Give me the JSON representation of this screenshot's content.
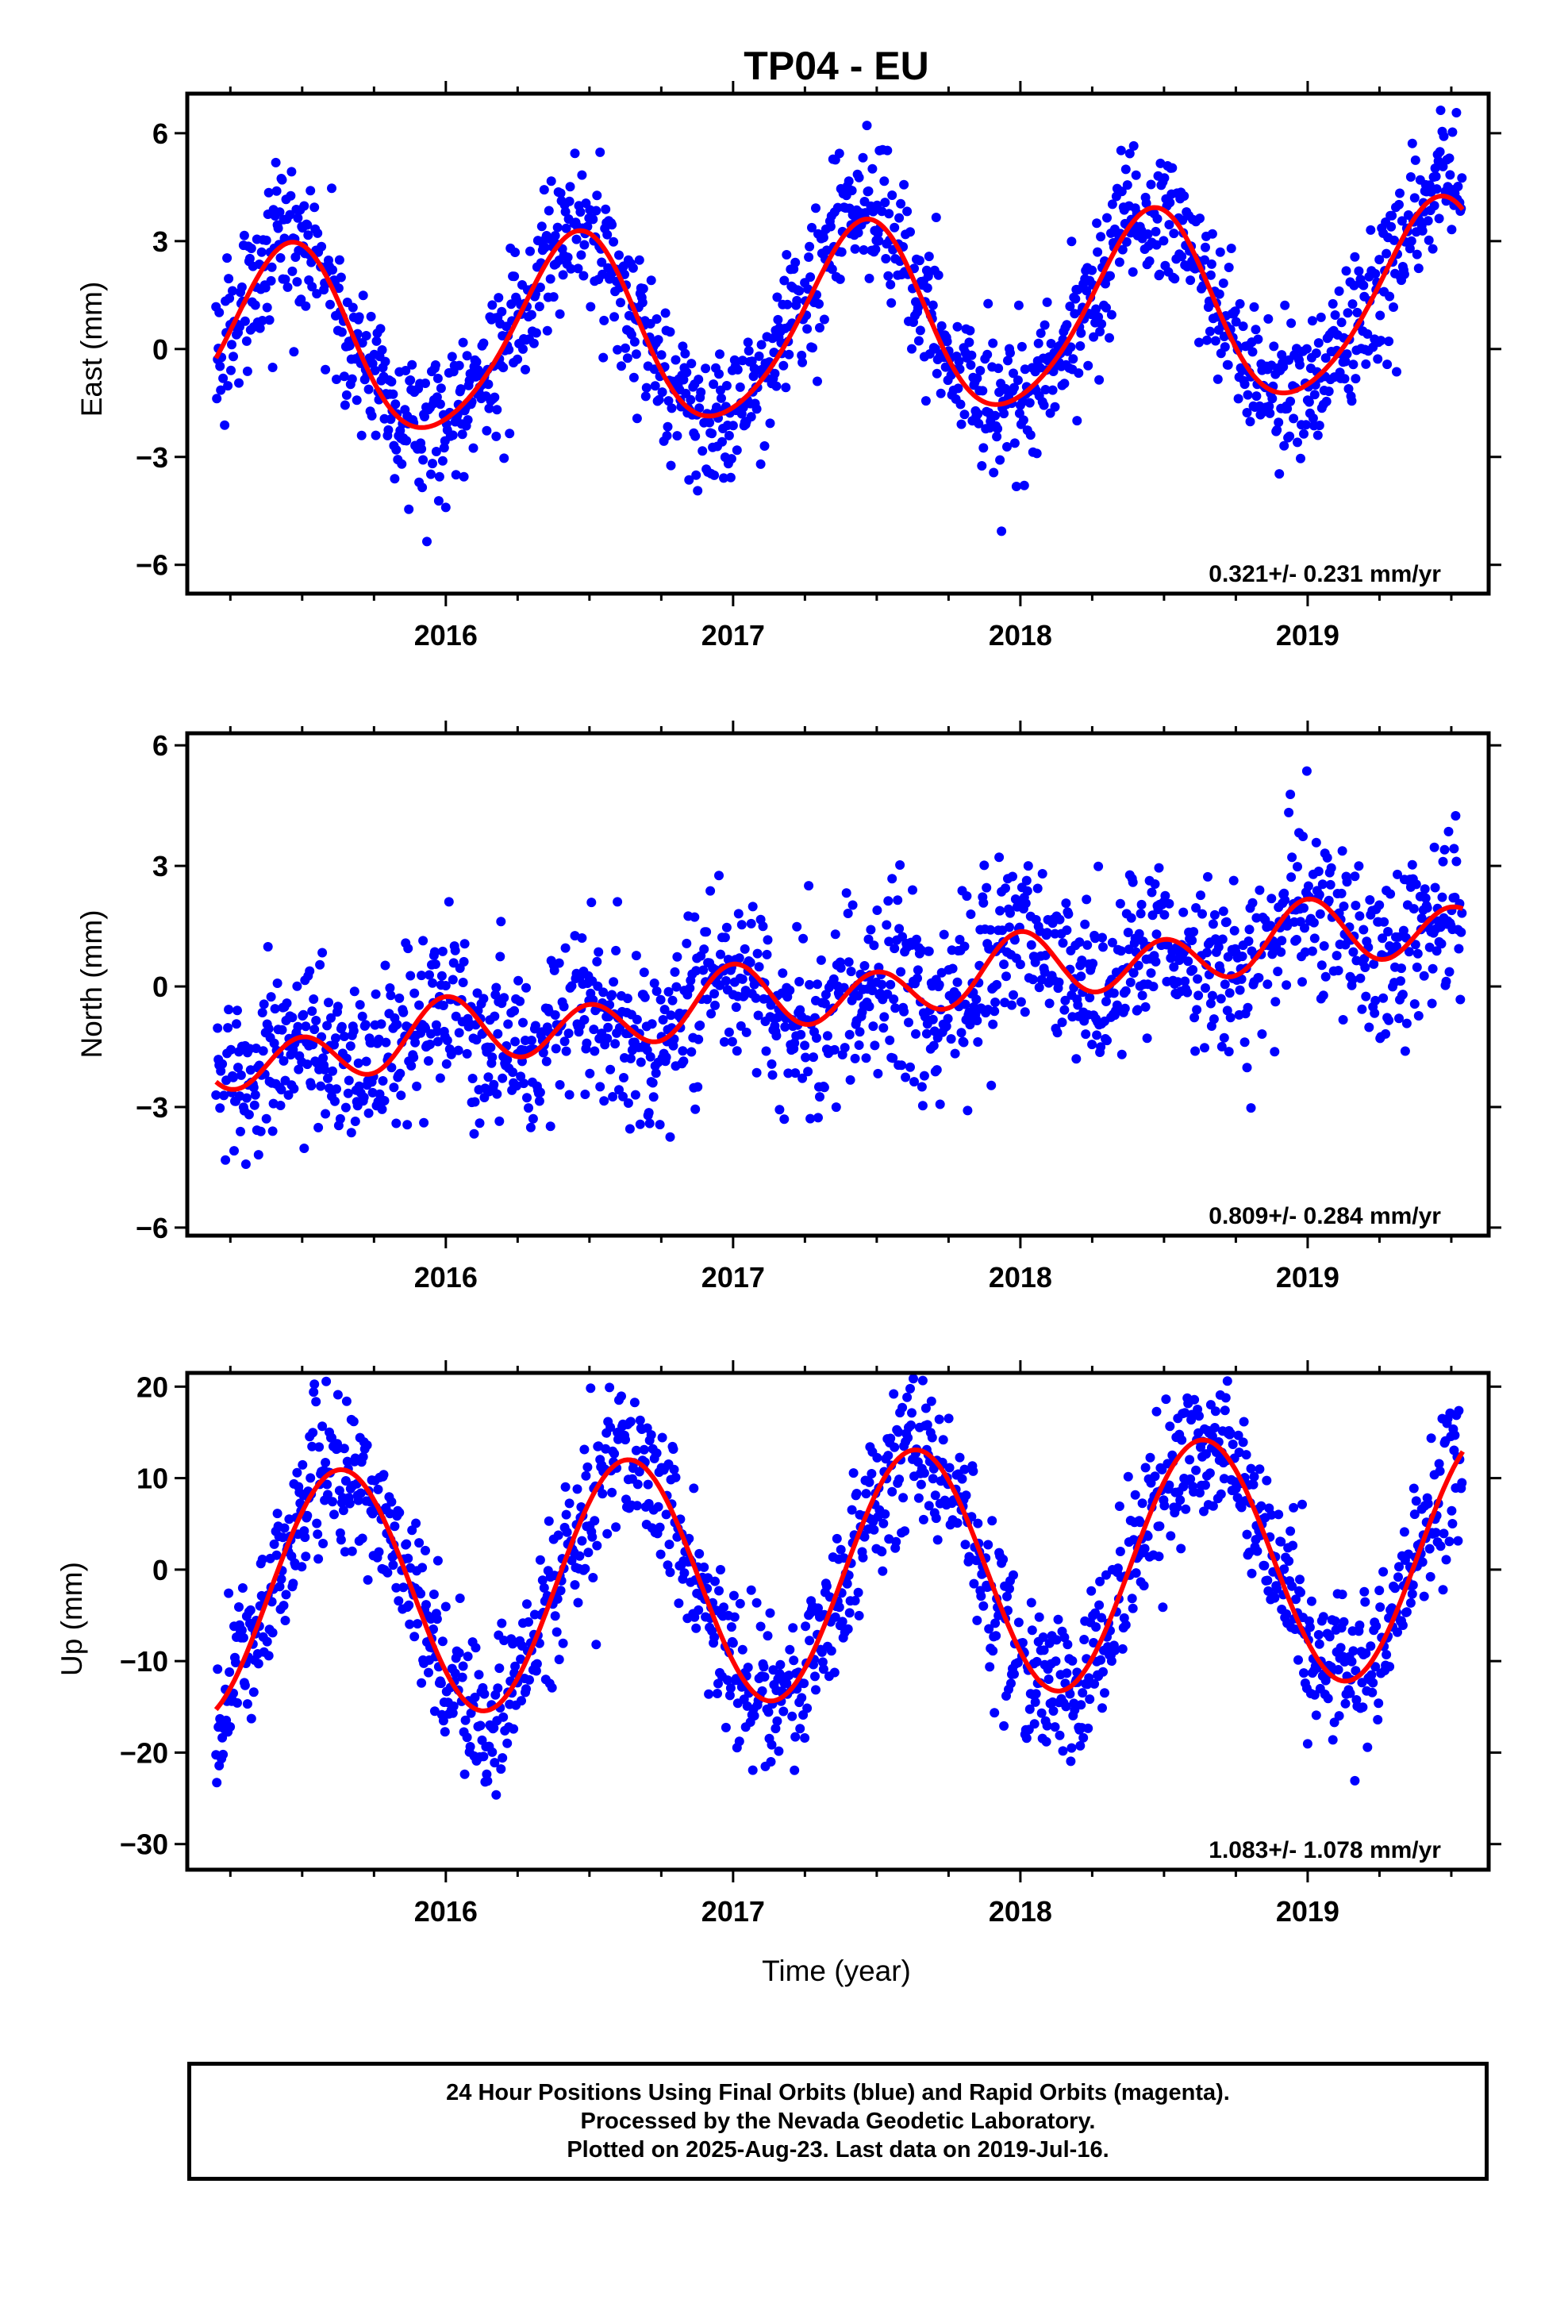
{
  "figure_title": "TP04 - EU",
  "xlabel": "Time (year)",
  "footer": {
    "line1": "24 Hour Positions Using Final Orbits (blue) and Rapid Orbits (magenta).",
    "line2": "Processed by the Nevada Geodetic Laboratory.",
    "line3": "Plotted on 2025-Aug-23. Last data on 2019-Jul-16."
  },
  "colors": {
    "points": "#0000ff",
    "fit": "#ff0000",
    "axes": "#000000"
  },
  "chart_data": [
    {
      "type": "scatter",
      "title": "",
      "ylabel": "East (mm)",
      "xlim": [
        2015.1,
        2019.63
      ],
      "ylim": [
        -6.8,
        7.1
      ],
      "x_ticks": [
        2016,
        2017,
        2018,
        2019
      ],
      "y_ticks": [
        -6,
        -3,
        0,
        3,
        6
      ],
      "y_tick_labels": [
        "−6",
        "−3",
        "0",
        "3",
        "6"
      ],
      "rate_label": "0.321+/- 0.231 mm/yr",
      "data_start": 2015.2,
      "data_end": 2019.54,
      "model": {
        "intercept": 0.0,
        "rate": 0.321,
        "annual_cos": -2.5,
        "annual_sin": 0.8,
        "semiannual_cos": 0.3,
        "semiannual_sin": 0.0,
        "scatter": 1.0
      },
      "series": [
        {
          "name": "Final Orbits",
          "kind": "points",
          "color": "#0000ff"
        },
        {
          "name": "Fit",
          "kind": "line",
          "color": "#ff0000"
        }
      ]
    },
    {
      "type": "scatter",
      "title": "",
      "ylabel": "North (mm)",
      "xlim": [
        2015.1,
        2019.63
      ],
      "ylim": [
        -6.2,
        6.3
      ],
      "x_ticks": [
        2016,
        2017,
        2018,
        2019
      ],
      "y_ticks": [
        -6,
        -3,
        0,
        3,
        6
      ],
      "y_tick_labels": [
        "−6",
        "−3",
        "0",
        "3",
        "6"
      ],
      "rate_label": "0.809+/- 0.284 mm/yr",
      "data_start": 2015.2,
      "data_end": 2019.54,
      "model": {
        "intercept": -1.9,
        "rate": 0.809,
        "annual_cos": 0.3,
        "annual_sin": 0.0,
        "semiannual_cos": 0.7,
        "semiannual_sin": 0.0,
        "scatter": 1.1
      },
      "series": [
        {
          "name": "Final Orbits",
          "kind": "points",
          "color": "#0000ff"
        },
        {
          "name": "Fit",
          "kind": "line",
          "color": "#ff0000"
        }
      ]
    },
    {
      "type": "scatter",
      "title": "",
      "ylabel": "Up (mm)",
      "xlim": [
        2015.1,
        2019.63
      ],
      "ylim": [
        -32.8,
        21.5
      ],
      "x_ticks": [
        2016,
        2017,
        2018,
        2019
      ],
      "y_ticks": [
        -30,
        -20,
        -10,
        0,
        10,
        20
      ],
      "y_tick_labels": [
        "−30",
        "−20",
        "−10",
        "0",
        "10",
        "20"
      ],
      "rate_label": "1.083+/- 1.078 mm/yr",
      "data_start": 2015.2,
      "data_end": 2019.54,
      "model": {
        "intercept": -3.0,
        "rate": 1.083,
        "annual_cos": -9.0,
        "annual_sin": -10.0,
        "semiannual_cos": 0.0,
        "semiannual_sin": 0.0,
        "scatter": 4.2
      },
      "series": [
        {
          "name": "Final Orbits",
          "kind": "points",
          "color": "#0000ff"
        },
        {
          "name": "Fit",
          "kind": "line",
          "color": "#ff0000"
        }
      ]
    }
  ]
}
